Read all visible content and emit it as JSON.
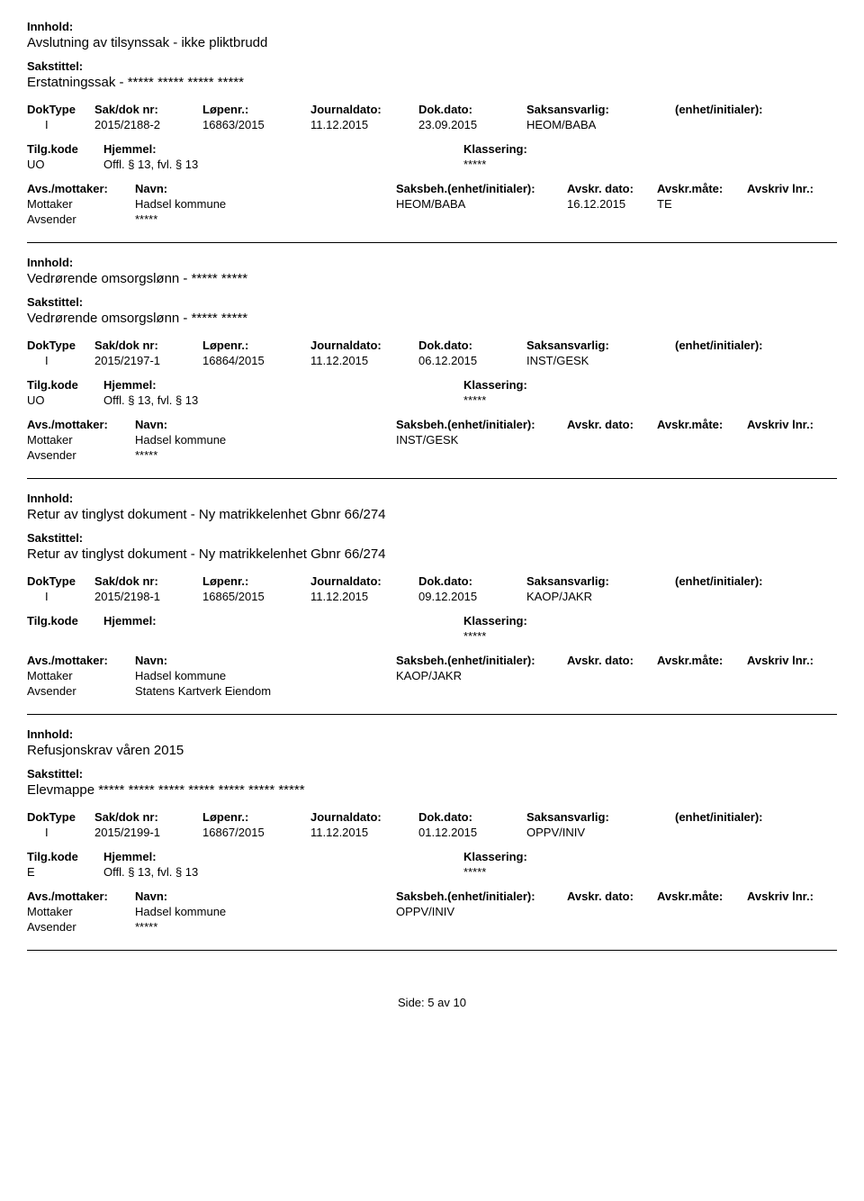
{
  "labels": {
    "innhold": "Innhold:",
    "sakstittel": "Sakstittel:",
    "doktype": "DokType",
    "saknr": "Sak/dok nr:",
    "lopenr": "Løpenr.:",
    "journaldato": "Journaldato:",
    "dokdato": "Dok.dato:",
    "saksansvarlig": "Saksansvarlig:",
    "enhet": "(enhet/initialer):",
    "tilgkode": "Tilg.kode",
    "hjemmel": "Hjemmel:",
    "klassering": "Klassering:",
    "avsmottaker": "Avs./mottaker:",
    "navn": "Navn:",
    "saksbeh": "Saksbeh.(enhet/initialer):",
    "avskrdato": "Avskr. dato:",
    "avskrmate": "Avskr.måte:",
    "avskrivlnr": "Avskriv lnr.:",
    "mottaker": "Mottaker",
    "avsender": "Avsender"
  },
  "records": [
    {
      "innhold": "Avslutning av tilsynssak - ikke pliktbrudd",
      "sakstittel": "Erstatningssak  - ***** ***** ***** *****",
      "doktype": "I",
      "saknr": "2015/2188-2",
      "lopenr": "16863/2015",
      "journaldato": "11.12.2015",
      "dokdato": "23.09.2015",
      "saksansvarlig": "HEOM/BABA",
      "tilgkode": "UO",
      "hjemmel": "Offl. § 13, fvl. § 13",
      "klassering": "*****",
      "parties": [
        {
          "role": "Mottaker",
          "navn": "Hadsel kommune",
          "saksbeh": "HEOM/BABA",
          "avskrdato": "16.12.2015",
          "avskrmate": "TE"
        },
        {
          "role": "Avsender",
          "navn": "*****",
          "saksbeh": "",
          "avskrdato": "",
          "avskrmate": ""
        }
      ]
    },
    {
      "innhold": "Vedrørende omsorgslønn - ***** *****",
      "sakstittel": "Vedrørende omsorgslønn - ***** *****",
      "doktype": "I",
      "saknr": "2015/2197-1",
      "lopenr": "16864/2015",
      "journaldato": "11.12.2015",
      "dokdato": "06.12.2015",
      "saksansvarlig": "INST/GESK",
      "tilgkode": "UO",
      "hjemmel": "Offl. § 13, fvl. § 13",
      "klassering": "*****",
      "parties": [
        {
          "role": "Mottaker",
          "navn": "Hadsel kommune",
          "saksbeh": "INST/GESK",
          "avskrdato": "",
          "avskrmate": ""
        },
        {
          "role": "Avsender",
          "navn": "*****",
          "saksbeh": "",
          "avskrdato": "",
          "avskrmate": ""
        }
      ]
    },
    {
      "innhold": "Retur av tinglyst dokument - Ny matrikkelenhet Gbnr 66/274",
      "sakstittel": "Retur av tinglyst dokument - Ny matrikkelenhet Gbnr 66/274",
      "doktype": "I",
      "saknr": "2015/2198-1",
      "lopenr": "16865/2015",
      "journaldato": "11.12.2015",
      "dokdato": "09.12.2015",
      "saksansvarlig": "KAOP/JAKR",
      "tilgkode": "",
      "hjemmel": "",
      "klassering": "*****",
      "parties": [
        {
          "role": "Mottaker",
          "navn": "Hadsel kommune",
          "saksbeh": "KAOP/JAKR",
          "avskrdato": "",
          "avskrmate": ""
        },
        {
          "role": "Avsender",
          "navn": "Statens Kartverk Eiendom",
          "saksbeh": "",
          "avskrdato": "",
          "avskrmate": ""
        }
      ]
    },
    {
      "innhold": "Refusjonskrav våren 2015",
      "sakstittel": "Elevmappe ***** ***** ***** ***** ***** ***** *****",
      "doktype": "I",
      "saknr": "2015/2199-1",
      "lopenr": "16867/2015",
      "journaldato": "11.12.2015",
      "dokdato": "01.12.2015",
      "saksansvarlig": "OPPV/INIV",
      "tilgkode": "E",
      "hjemmel": "Offl. § 13, fvl. § 13",
      "klassering": "*****",
      "parties": [
        {
          "role": "Mottaker",
          "navn": "Hadsel kommune",
          "saksbeh": "OPPV/INIV",
          "avskrdato": "",
          "avskrmate": ""
        },
        {
          "role": "Avsender",
          "navn": "*****",
          "saksbeh": "",
          "avskrdato": "",
          "avskrmate": ""
        }
      ]
    }
  ],
  "footer": {
    "label": "Side:",
    "current": "5",
    "sep": "av",
    "total": "10"
  }
}
